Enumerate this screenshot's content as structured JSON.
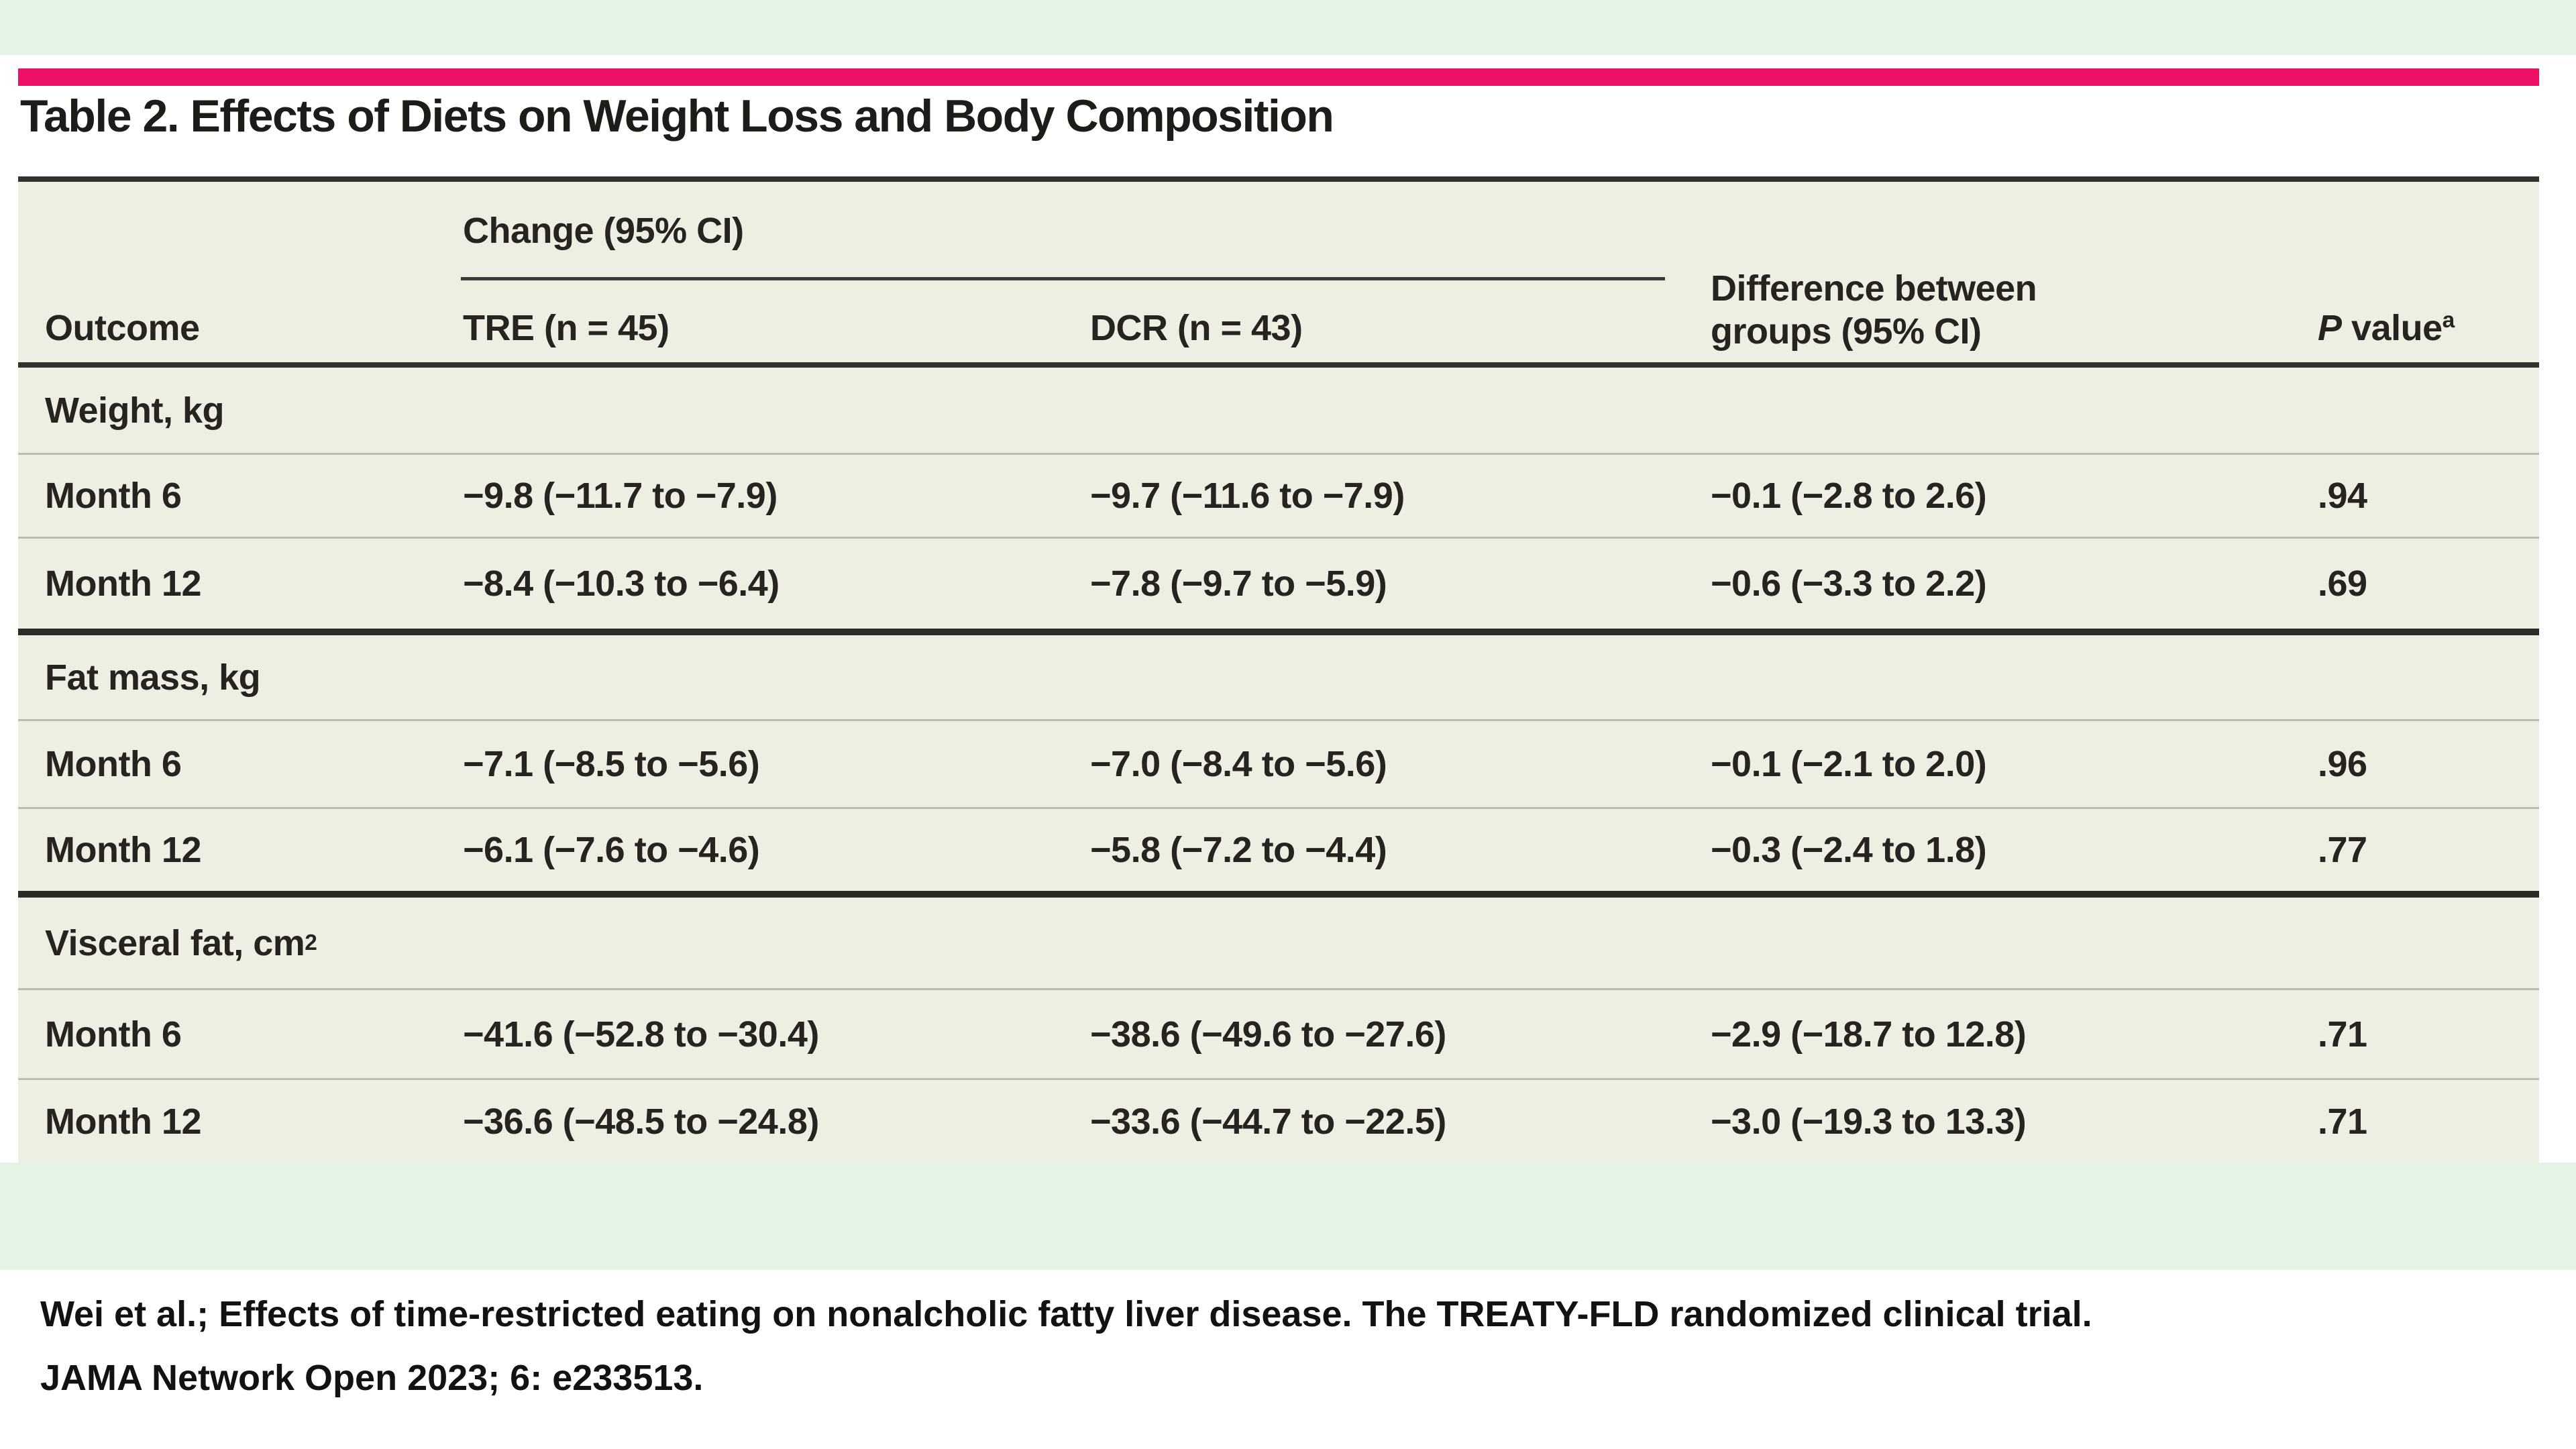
{
  "page": {
    "title": "Table 2. Effects of Diets on Weight Loss and Body Composition",
    "citation_line1": "Wei et al.; Effects of time-restricted eating on nonalcholic fatty liver disease. The TREATY-FLD randomized clinical trial.",
    "citation_line2": "JAMA Network Open 2023; 6: e233513."
  },
  "colors": {
    "accent_pink": "#ec1066",
    "band_green": "#e4f3e3",
    "table_beige": "#efeee3",
    "rule_dark": "#32322e"
  },
  "table": {
    "header": {
      "group": "Change (95% CI)",
      "outcome": "Outcome",
      "tre": "TRE (n = 45)",
      "dcr": "DCR (n = 43)",
      "diff": "Difference between groups (95% CI)",
      "p_italic": "P",
      "p_rest": " value",
      "p_sup": "a"
    },
    "sections": [
      {
        "label": "Weight, kg",
        "label_sup": "",
        "rows": [
          {
            "outcome": "Month 6",
            "tre": "−9.8 (−11.7 to −7.9)",
            "dcr": "−9.7 (−11.6 to −7.9)",
            "diff": "−0.1 (−2.8 to 2.6)",
            "p": ".94"
          },
          {
            "outcome": "Month 12",
            "tre": "−8.4 (−10.3 to −6.4)",
            "dcr": "−7.8 (−9.7 to −5.9)",
            "diff": "−0.6 (−3.3 to 2.2)",
            "p": ".69"
          }
        ]
      },
      {
        "label": "Fat mass, kg",
        "label_sup": "",
        "rows": [
          {
            "outcome": "Month 6",
            "tre": "−7.1 (−8.5 to −5.6)",
            "dcr": "−7.0 (−8.4 to −5.6)",
            "diff": "−0.1 (−2.1 to 2.0)",
            "p": ".96"
          },
          {
            "outcome": "Month 12",
            "tre": "−6.1 (−7.6 to −4.6)",
            "dcr": "−5.8 (−7.2 to −4.4)",
            "diff": "−0.3 (−2.4 to 1.8)",
            "p": ".77"
          }
        ]
      },
      {
        "label": "Visceral fat, cm",
        "label_sup": "2",
        "rows": [
          {
            "outcome": "Month 6",
            "tre": "−41.6 (−52.8 to −30.4)",
            "dcr": "−38.6 (−49.6 to −27.6)",
            "diff": "−2.9 (−18.7 to 12.8)",
            "p": ".71"
          },
          {
            "outcome": "Month 12",
            "tre": "−36.6 (−48.5 to −24.8)",
            "dcr": "−33.6 (−44.7 to −22.5)",
            "diff": "−3.0 (−19.3 to 13.3)",
            "p": ".71"
          }
        ]
      }
    ]
  }
}
